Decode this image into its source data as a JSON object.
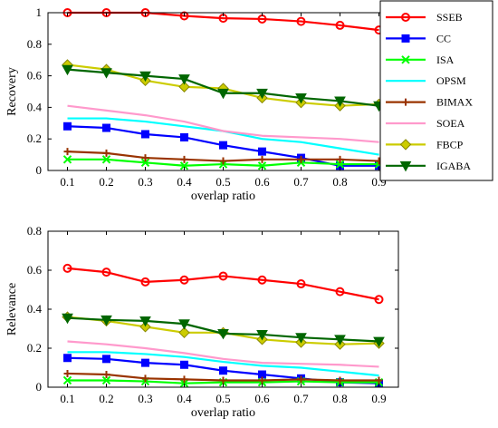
{
  "chart_data": [
    {
      "type": "line",
      "xlabel": "overlap ratio",
      "ylabel": "Recovery",
      "x": [
        0.1,
        0.2,
        0.3,
        0.4,
        0.5,
        0.6,
        0.7,
        0.8,
        0.9
      ],
      "xlim": [
        0.05,
        0.95
      ],
      "ylim": [
        0,
        1
      ],
      "xticks": [
        "0.1",
        "0.2",
        "0.3",
        "0.4",
        "0.5",
        "0.6",
        "0.7",
        "0.8",
        "0.9"
      ],
      "yticks": [
        "0",
        "0.2",
        "0.4",
        "0.6",
        "0.8",
        "1"
      ],
      "legend": "outside-right",
      "series": [
        {
          "name": "SSEB",
          "color": "#ff0000",
          "marker": "circle",
          "values": [
            1.0,
            1.0,
            1.0,
            0.98,
            0.965,
            0.96,
            0.945,
            0.92,
            0.89
          ]
        },
        {
          "name": "CC",
          "color": "#0000ff",
          "marker": "square",
          "values": [
            0.28,
            0.27,
            0.23,
            0.21,
            0.16,
            0.12,
            0.08,
            0.03,
            0.03
          ]
        },
        {
          "name": "ISA",
          "color": "#00ff00",
          "marker": "x",
          "values": [
            0.07,
            0.07,
            0.05,
            0.03,
            0.04,
            0.03,
            0.05,
            0.04,
            0.04
          ]
        },
        {
          "name": "OPSM",
          "color": "#00ffff",
          "marker": "none",
          "values": [
            0.33,
            0.33,
            0.31,
            0.28,
            0.25,
            0.2,
            0.18,
            0.14,
            0.1
          ]
        },
        {
          "name": "BIMAX",
          "color": "#993300",
          "marker": "plus",
          "values": [
            0.12,
            0.11,
            0.08,
            0.07,
            0.06,
            0.07,
            0.07,
            0.07,
            0.06
          ]
        },
        {
          "name": "SOEA",
          "color": "#ff99cc",
          "marker": "none",
          "values": [
            0.41,
            0.38,
            0.35,
            0.31,
            0.25,
            0.22,
            0.21,
            0.2,
            0.18
          ]
        },
        {
          "name": "FBCP",
          "color": "#cccc00",
          "marker": "diamond",
          "values": [
            0.67,
            0.64,
            0.57,
            0.53,
            0.52,
            0.46,
            0.43,
            0.41,
            0.42
          ]
        },
        {
          "name": "IGABA",
          "color": "#006600",
          "marker": "triangle",
          "values": [
            0.64,
            0.62,
            0.6,
            0.58,
            0.49,
            0.49,
            0.46,
            0.44,
            0.41
          ]
        }
      ]
    },
    {
      "type": "line",
      "xlabel": "overlap ratio",
      "ylabel": "Relevance",
      "x": [
        0.1,
        0.2,
        0.3,
        0.4,
        0.5,
        0.6,
        0.7,
        0.8,
        0.9
      ],
      "xlim": [
        0.05,
        0.95
      ],
      "ylim": [
        0,
        0.8
      ],
      "xticks": [
        "0.1",
        "0.2",
        "0.3",
        "0.4",
        "0.5",
        "0.6",
        "0.7",
        "0.8",
        "0.9"
      ],
      "yticks": [
        "0",
        "0.2",
        "0.4",
        "0.6",
        "0.8"
      ],
      "series": [
        {
          "name": "SSEB",
          "color": "#ff0000",
          "marker": "circle",
          "values": [
            0.61,
            0.59,
            0.54,
            0.55,
            0.57,
            0.55,
            0.53,
            0.49,
            0.45
          ]
        },
        {
          "name": "CC",
          "color": "#0000ff",
          "marker": "square",
          "values": [
            0.15,
            0.145,
            0.125,
            0.115,
            0.085,
            0.065,
            0.045,
            0.025,
            0.02
          ]
        },
        {
          "name": "ISA",
          "color": "#00ff00",
          "marker": "x",
          "values": [
            0.035,
            0.035,
            0.03,
            0.02,
            0.025,
            0.025,
            0.03,
            0.025,
            0.025
          ]
        },
        {
          "name": "OPSM",
          "color": "#00ffff",
          "marker": "none",
          "values": [
            0.18,
            0.18,
            0.17,
            0.155,
            0.13,
            0.11,
            0.1,
            0.08,
            0.06
          ]
        },
        {
          "name": "BIMAX",
          "color": "#993300",
          "marker": "plus",
          "values": [
            0.07,
            0.065,
            0.045,
            0.04,
            0.035,
            0.035,
            0.04,
            0.035,
            0.035
          ]
        },
        {
          "name": "SOEA",
          "color": "#ff99cc",
          "marker": "none",
          "values": [
            0.235,
            0.22,
            0.2,
            0.175,
            0.145,
            0.125,
            0.12,
            0.115,
            0.105
          ]
        },
        {
          "name": "FBCP",
          "color": "#cccc00",
          "marker": "diamond",
          "values": [
            0.36,
            0.34,
            0.31,
            0.28,
            0.28,
            0.245,
            0.23,
            0.22,
            0.225
          ]
        },
        {
          "name": "IGABA",
          "color": "#006600",
          "marker": "triangle",
          "values": [
            0.355,
            0.345,
            0.34,
            0.325,
            0.275,
            0.27,
            0.255,
            0.245,
            0.235
          ]
        }
      ]
    }
  ]
}
